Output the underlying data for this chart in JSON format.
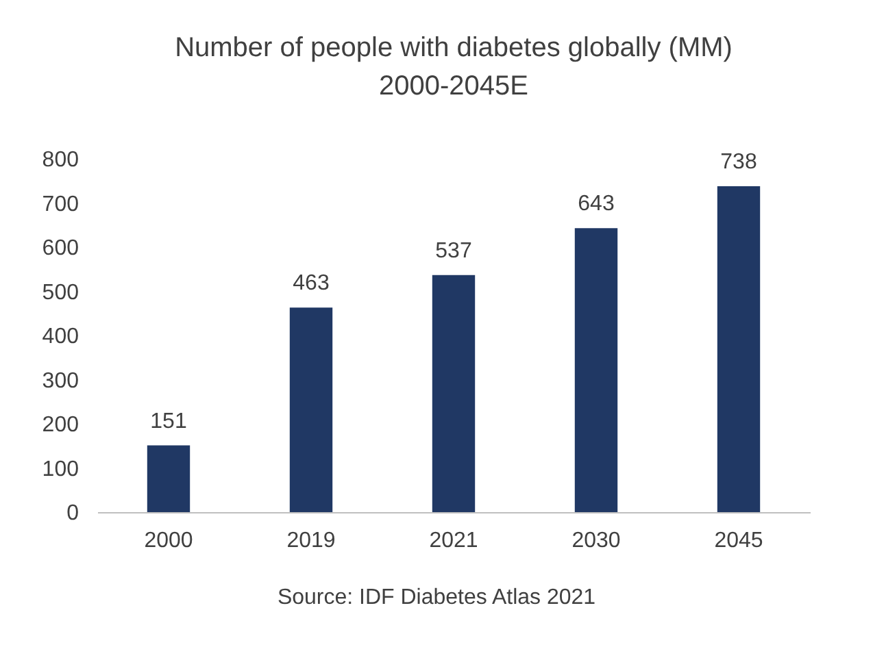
{
  "chart_data": {
    "type": "bar",
    "title": "Number of people with diabetes globally (MM)",
    "subtitle": "2000-2045E",
    "categories": [
      "2000",
      "2019",
      "2021",
      "2030",
      "2045"
    ],
    "values": [
      151,
      463,
      537,
      643,
      738
    ],
    "color": "#203864",
    "ylim": [
      0,
      800
    ],
    "yticks": [
      0,
      100,
      200,
      300,
      400,
      500,
      600,
      700,
      800
    ],
    "grid": false,
    "data_labels": true,
    "annotations": [
      "Source: IDF Diabetes Atlas 2021"
    ]
  }
}
